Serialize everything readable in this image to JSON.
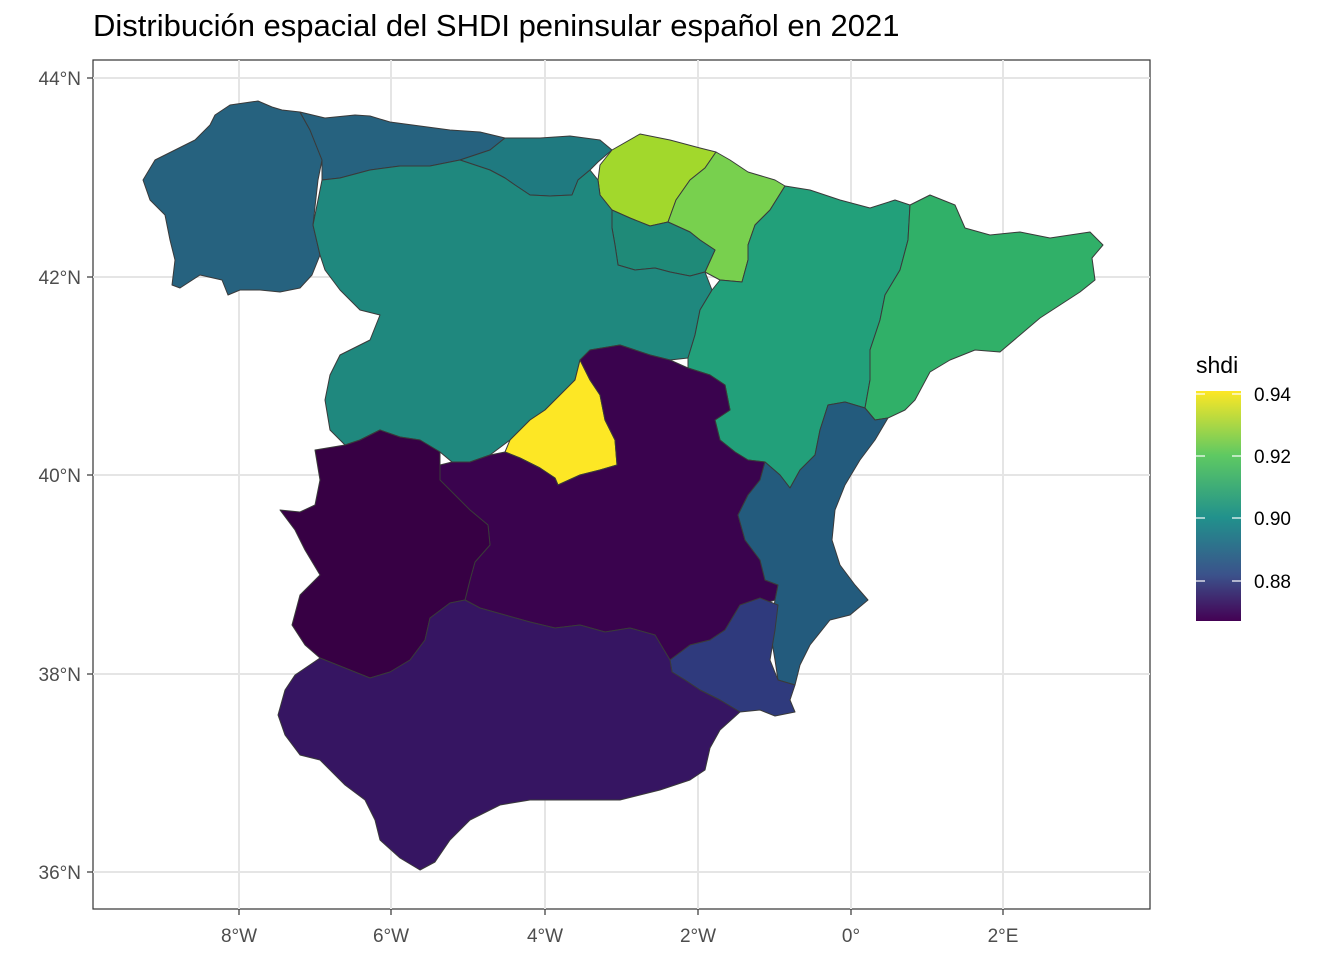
{
  "title": "Distribución espacial del SHDI peninsular español en 2021",
  "axes": {
    "x_ticks": [
      "8°W",
      "6°W",
      "4°W",
      "2°W",
      "0°",
      "2°E"
    ],
    "y_ticks": [
      "44°N",
      "42°N",
      "40°N",
      "38°N",
      "36°N"
    ]
  },
  "legend": {
    "title": "shdi",
    "labels": [
      "0.94",
      "0.92",
      "0.90",
      "0.88"
    ],
    "colors": [
      "#fde725",
      "#5ec962",
      "#21918c",
      "#3b528b",
      "#440154"
    ]
  },
  "regions": [
    {
      "name": "Galicia",
      "color": "#26627f"
    },
    {
      "name": "Asturias",
      "color": "#26627f"
    },
    {
      "name": "Cantabria",
      "color": "#1f7a80"
    },
    {
      "name": "País Vasco",
      "color": "#a2d82c"
    },
    {
      "name": "Navarra",
      "color": "#78d04e"
    },
    {
      "name": "La Rioja",
      "color": "#1f8a78"
    },
    {
      "name": "Castilla y León",
      "color": "#1f887e"
    },
    {
      "name": "Aragón",
      "color": "#22a07a"
    },
    {
      "name": "Cataluña",
      "color": "#30b068"
    },
    {
      "name": "Madrid",
      "color": "#fde725"
    },
    {
      "name": "Castilla-La Mancha",
      "color": "#3a034e"
    },
    {
      "name": "Extremadura",
      "color": "#370044"
    },
    {
      "name": "Comunidad Valenciana",
      "color": "#235b7d"
    },
    {
      "name": "Región de Murcia",
      "color": "#2f3a7d"
    },
    {
      "name": "Andalucía",
      "color": "#361562"
    }
  ]
}
